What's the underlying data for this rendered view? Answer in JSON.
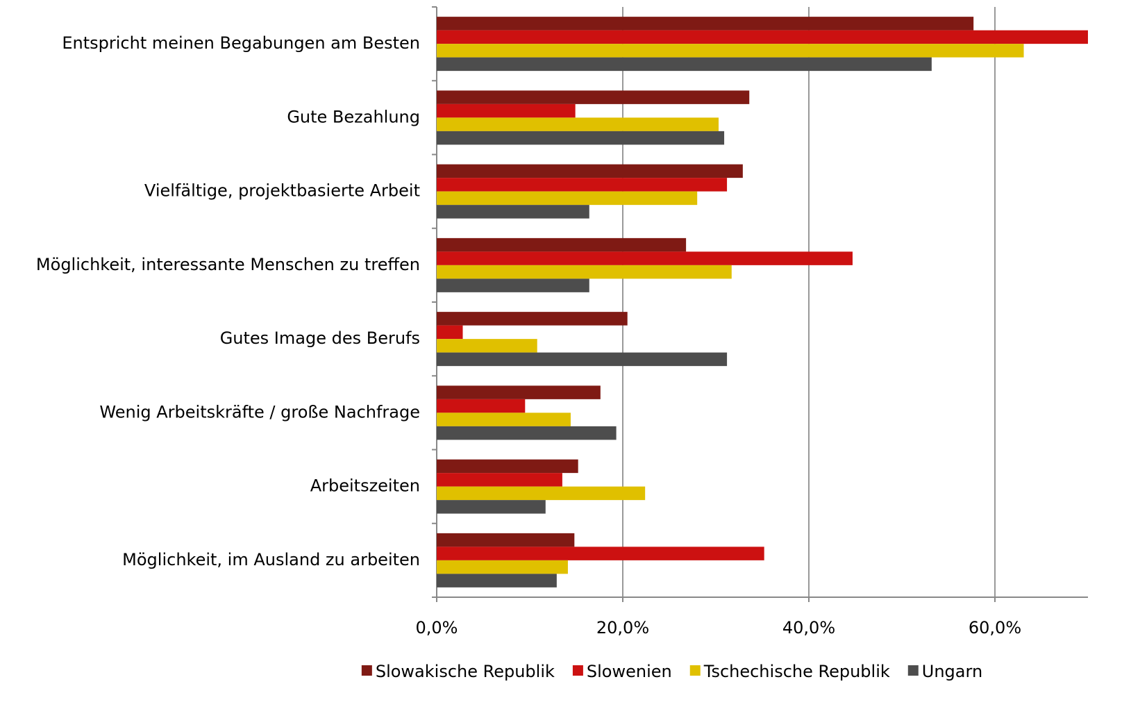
{
  "chart_data": {
    "type": "barh",
    "categories": [
      "Entspricht meinen Begabungen am Besten",
      "Gute Bezahlung",
      "Vielfältige, projektbasierte Arbeit",
      "Möglichkeit, interessante Menschen zu treffen",
      "Gutes Image des Berufs",
      "Wenig Arbeitskräfte / große Nachfrage",
      "Arbeitszeiten",
      "Möglichkeit, im Ausland zu arbeiten"
    ],
    "series": [
      {
        "name": "Slowakische Republik",
        "color": "#7f1a14",
        "values": [
          57.7,
          33.6,
          32.9,
          26.8,
          20.5,
          17.6,
          15.2,
          14.8
        ]
      },
      {
        "name": "Slowenien",
        "color": "#cc1111",
        "values": [
          70,
          14.9,
          31.2,
          44.7,
          2.8,
          9.5,
          13.5,
          35.2
        ]
      },
      {
        "name": "Tschechische Republik",
        "color": "#e0c000",
        "values": [
          63.1,
          30.3,
          28.0,
          31.7,
          10.8,
          14.4,
          22.4,
          14.1
        ]
      },
      {
        "name": "Ungarn",
        "color": "#4d4d4d",
        "values": [
          53.2,
          30.9,
          16.4,
          16.4,
          31.2,
          19.3,
          11.7,
          12.9
        ]
      }
    ],
    "xlim": [
      0,
      70
    ],
    "xticks": [
      {
        "value": 0,
        "label": "0,0%"
      },
      {
        "value": 20,
        "label": "20,0%"
      },
      {
        "value": 40,
        "label": "40,0%"
      },
      {
        "value": 60,
        "label": "60,0%"
      }
    ],
    "grid": true,
    "legend": "bottom"
  }
}
